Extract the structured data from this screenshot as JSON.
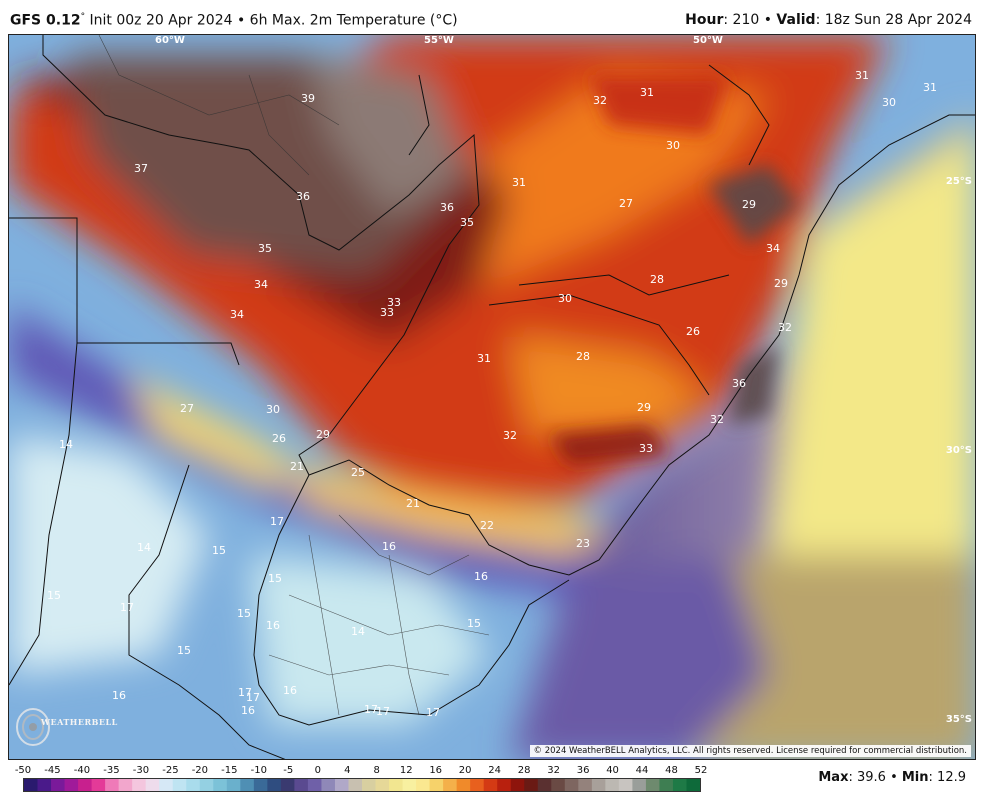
{
  "header": {
    "model": "GFS 0.12",
    "degree_mark": "°",
    "init_text": " Init 00z 20 Apr 2024 • 6h Max. 2m Temperature (°C)",
    "hour_label": "Hour",
    "hour_value": ": 210 • ",
    "valid_label": "Valid",
    "valid_value": ": 18z Sun 28 Apr 2024"
  },
  "map": {
    "lon_labels": [
      "60°W",
      "55°W",
      "50°W"
    ],
    "lat_labels": [
      "25°S",
      "30°S",
      "35°S"
    ],
    "copyright": "© 2024 WeatherBELL Analytics, LLC. All rights reserved. License required for commercial distribution.",
    "logo_text": "WEATHERBELL",
    "logo_icon": "weatherbell-swirl-icon",
    "temperature_labels": [
      "39",
      "37",
      "36",
      "36",
      "35",
      "35",
      "34",
      "34",
      "33",
      "33",
      "31",
      "32",
      "31",
      "30",
      "31",
      "30",
      "31",
      "27",
      "29",
      "34",
      "29",
      "32",
      "28",
      "30",
      "26",
      "28",
      "31",
      "36",
      "29",
      "32",
      "33",
      "32",
      "30",
      "27",
      "26",
      "29",
      "21",
      "25",
      "21",
      "22",
      "23",
      "16",
      "16",
      "17",
      "15",
      "14",
      "15",
      "15",
      "17",
      "15",
      "16",
      "14",
      "15",
      "15",
      "16",
      "17",
      "17",
      "16",
      "16",
      "17",
      "17",
      "17",
      "14"
    ]
  },
  "legend": {
    "ticks": [
      "-50",
      "-45",
      "-40",
      "-35",
      "-30",
      "-25",
      "-20",
      "-15",
      "-10",
      "-5",
      "0",
      "4",
      "8",
      "12",
      "16",
      "20",
      "24",
      "28",
      "32",
      "36",
      "40",
      "44",
      "48",
      "52"
    ],
    "max_label": "Max",
    "max_value": ": 39.6 • ",
    "min_label": "Min",
    "min_value": ": 12.9"
  }
}
